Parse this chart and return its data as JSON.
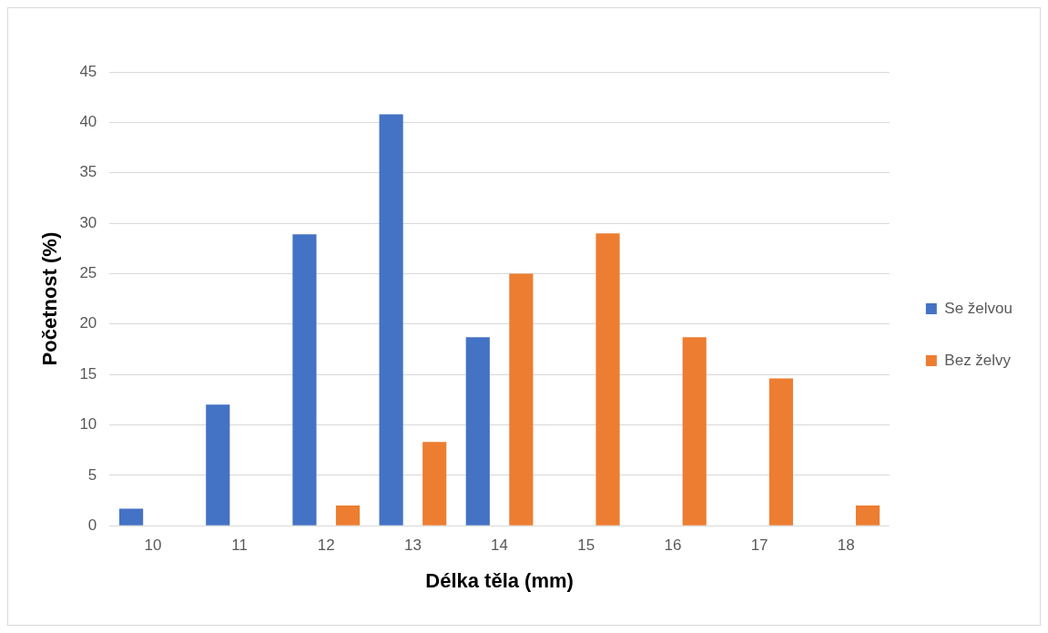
{
  "chart_data": {
    "type": "bar",
    "xlabel": "Délka těla (mm)",
    "ylabel": "Početnost (%)",
    "categories": [
      "10",
      "11",
      "12",
      "13",
      "14",
      "15",
      "16",
      "17",
      "18"
    ],
    "series": [
      {
        "name": "Se želvou",
        "color": "#4472c4",
        "values": [
          1.7,
          12.0,
          28.9,
          40.8,
          18.7,
          null,
          null,
          null,
          null
        ]
      },
      {
        "name": "Bez želvy",
        "color": "#ed7d31",
        "values": [
          null,
          null,
          2.0,
          8.3,
          25.0,
          29.0,
          18.7,
          14.6,
          2.0
        ]
      }
    ],
    "ylim": [
      0,
      45
    ],
    "yticks": [
      0,
      5,
      10,
      15,
      20,
      25,
      30,
      35,
      40,
      45
    ],
    "grid": "y",
    "legend": "right"
  }
}
